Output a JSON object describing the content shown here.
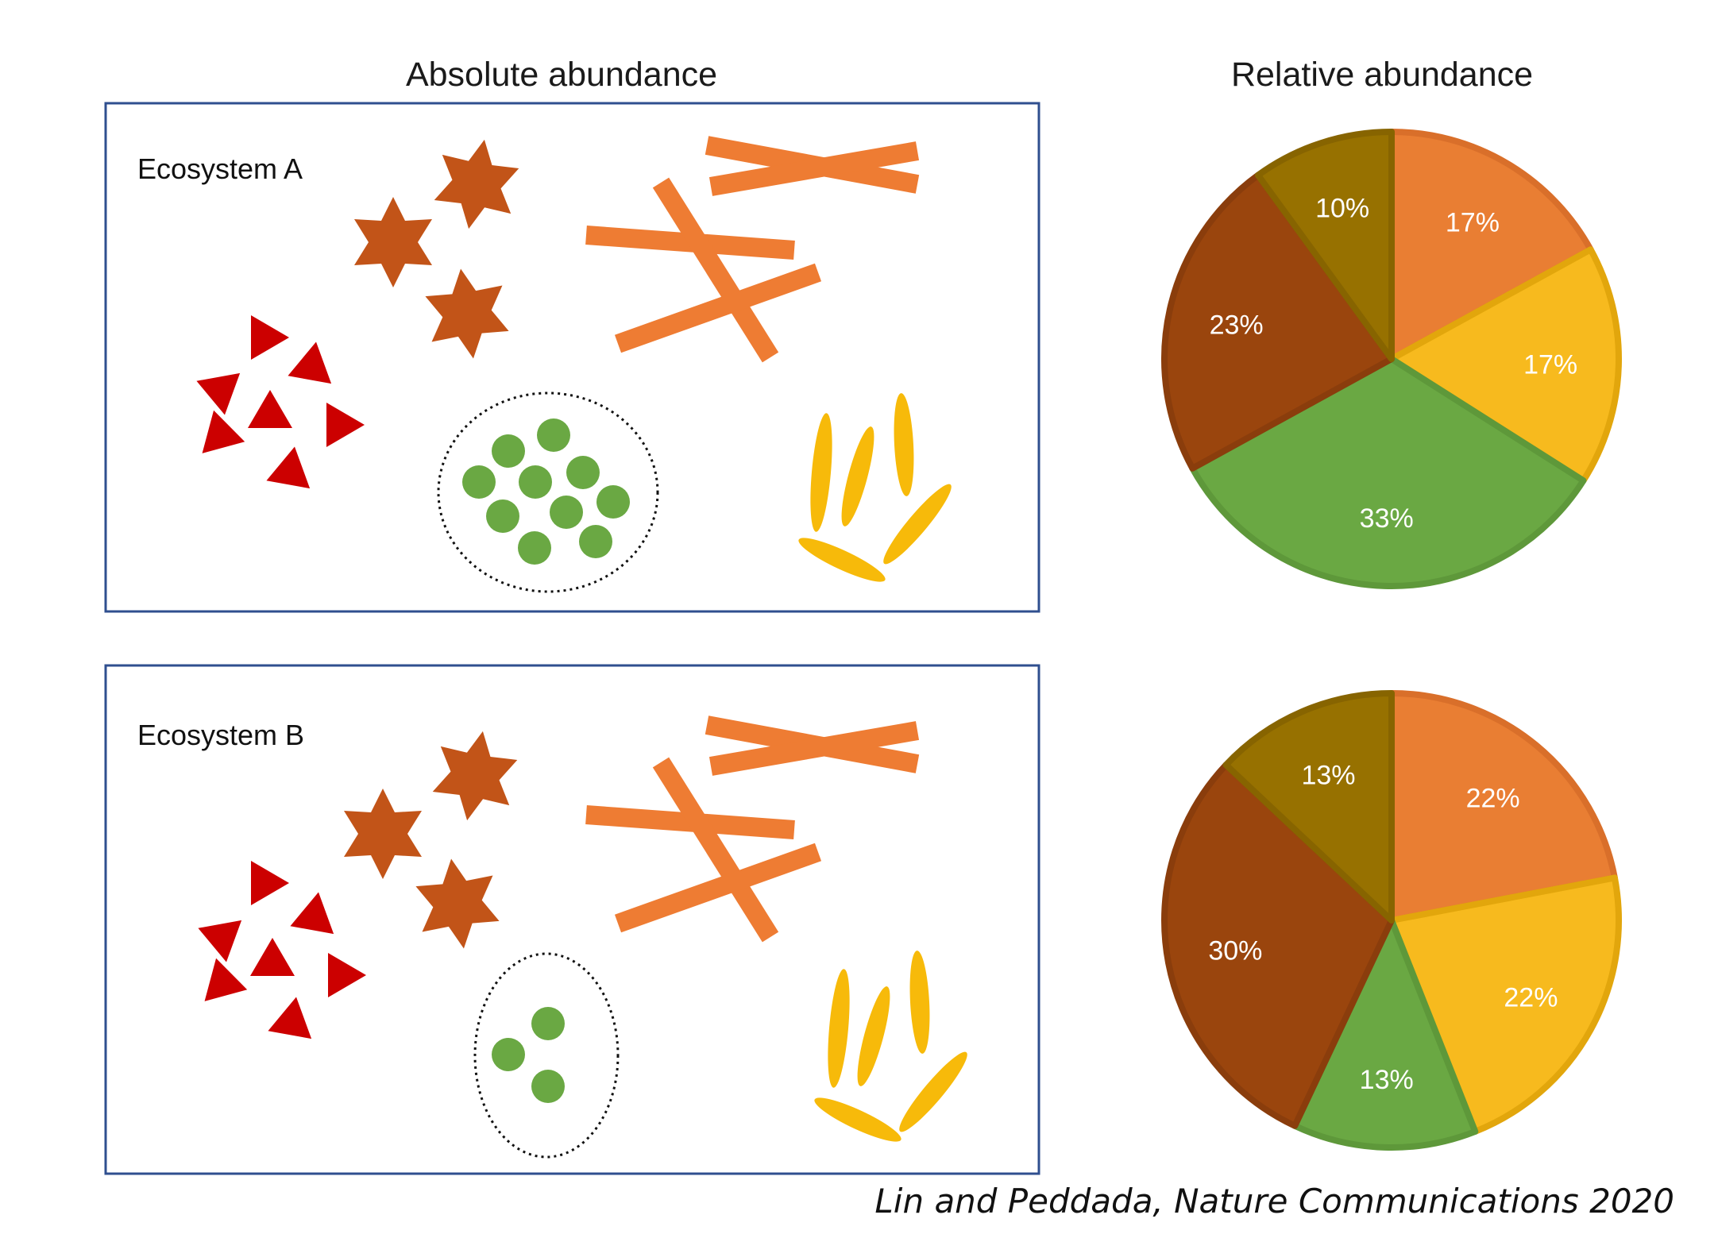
{
  "titles": {
    "absolute": "Absolute abundance",
    "relative": "Relative abundance"
  },
  "ecosystems": [
    {
      "label": "Ecosystem A"
    },
    {
      "label": "Ecosystem B"
    }
  ],
  "citation": "Lin and Peddada, Nature Communications 2020",
  "colors": {
    "orange": "#E97E33",
    "yellow": "#F7BA1E",
    "green": "#6AA843",
    "brown": "#9A450D",
    "olive": "#977100",
    "star": "#C25418",
    "triangle": "#CC0000",
    "rod": "#EE7C33",
    "ellipse": "#F7BA0A",
    "panel_border": "#2F4F8F"
  },
  "chart_data": [
    {
      "type": "pie",
      "title": "Relative abundance",
      "slices": [
        {
          "value": 17,
          "label": "17%",
          "color": "orange"
        },
        {
          "value": 17,
          "label": "17%",
          "color": "yellow"
        },
        {
          "value": 33,
          "label": "33%",
          "color": "green"
        },
        {
          "value": 23,
          "label": "23%",
          "color": "brown"
        },
        {
          "value": 10,
          "label": "10%",
          "color": "olive"
        }
      ]
    },
    {
      "type": "pie",
      "title": "",
      "slices": [
        {
          "value": 22,
          "label": "22%",
          "color": "orange"
        },
        {
          "value": 22,
          "label": "22%",
          "color": "yellow"
        },
        {
          "value": 13,
          "label": "13%",
          "color": "green"
        },
        {
          "value": 30,
          "label": "30%",
          "color": "brown"
        },
        {
          "value": 13,
          "label": "13%",
          "color": "olive"
        }
      ]
    }
  ]
}
